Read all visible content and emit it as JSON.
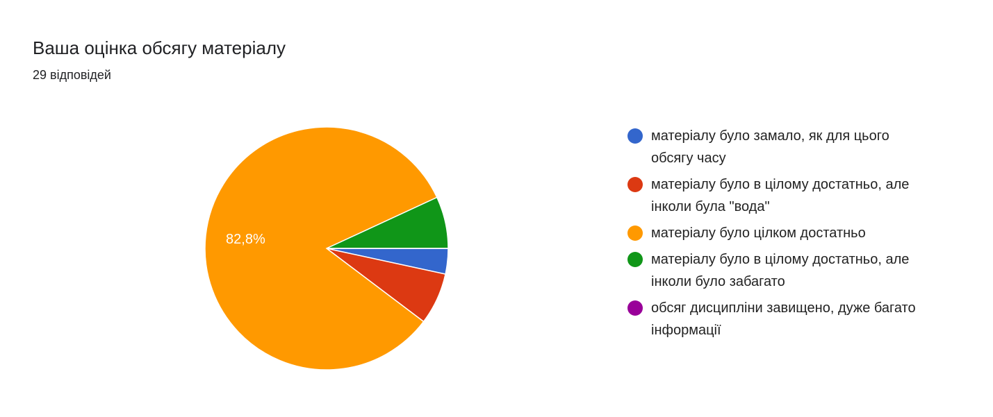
{
  "chart_data": {
    "type": "pie",
    "title": "Ваша оцінка обсягу матеріалу",
    "subtitle": "29 відповідей",
    "categories": [
      "матеріалу було замало, як для цього обсягу часу",
      "матеріалу було в цілому достатньо, але інколи була \"вода\"",
      "матеріалу було цілком достатньо",
      "матеріалу було в цілому достатньо, але інколи було забагато",
      "обсяг дисципліни завищено, дуже багато інформації"
    ],
    "values": [
      3.4,
      6.9,
      82.8,
      6.9,
      0
    ],
    "value_labels": [
      null,
      null,
      "82,8%",
      null,
      null
    ],
    "colors": [
      "#3366cc",
      "#dc3912",
      "#ff9900",
      "#109618",
      "#990099"
    ],
    "legend": "right"
  }
}
